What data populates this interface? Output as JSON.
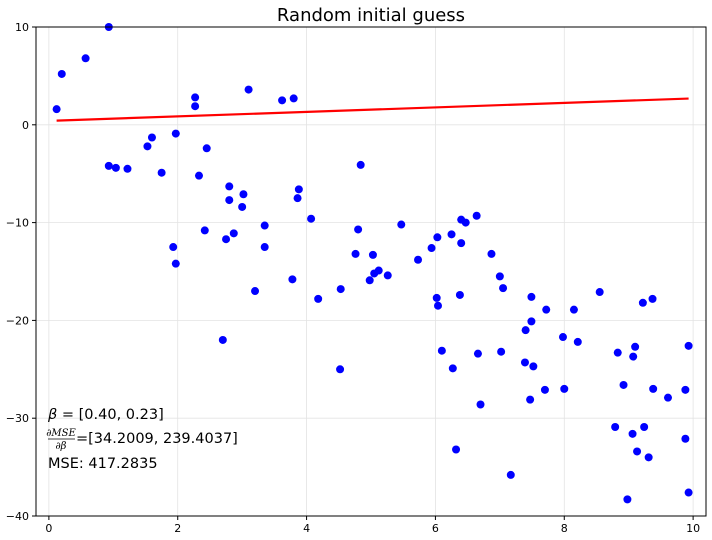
{
  "chart_data": {
    "type": "scatter",
    "title": "Random initial guess",
    "xlabel": "",
    "ylabel": "",
    "xlim": [
      -0.2,
      10.2
    ],
    "ylim": [
      -40,
      10
    ],
    "x_ticks": [
      0,
      2,
      4,
      6,
      8,
      10
    ],
    "y_ticks": [
      -40,
      -30,
      -20,
      -10,
      0,
      10
    ],
    "grid": true,
    "colors": {
      "points": "#0000ff",
      "line": "#ff0000",
      "grid": "#e3e3e3",
      "axes": "#000000"
    },
    "points": [
      [
        0.12,
        1.6
      ],
      [
        0.2,
        5.2
      ],
      [
        0.57,
        6.8
      ],
      [
        0.93,
        10.0
      ],
      [
        0.93,
        -4.2
      ],
      [
        1.04,
        -4.4
      ],
      [
        1.22,
        -4.5
      ],
      [
        1.53,
        -2.2
      ],
      [
        1.6,
        -1.3
      ],
      [
        1.75,
        -4.9
      ],
      [
        1.93,
        -12.5
      ],
      [
        1.97,
        -14.2
      ],
      [
        1.97,
        -0.9
      ],
      [
        2.27,
        1.9
      ],
      [
        2.27,
        2.8
      ],
      [
        2.33,
        -5.2
      ],
      [
        2.42,
        -10.8
      ],
      [
        2.45,
        -2.4
      ],
      [
        2.7,
        -22.0
      ],
      [
        2.75,
        -11.7
      ],
      [
        2.8,
        -6.3
      ],
      [
        2.8,
        -7.7
      ],
      [
        2.87,
        -11.1
      ],
      [
        3.0,
        -8.4
      ],
      [
        3.02,
        -7.1
      ],
      [
        3.1,
        3.6
      ],
      [
        3.2,
        -17.0
      ],
      [
        3.35,
        -12.5
      ],
      [
        3.35,
        -10.3
      ],
      [
        3.62,
        2.5
      ],
      [
        3.78,
        -15.8
      ],
      [
        3.8,
        2.7
      ],
      [
        3.86,
        -7.5
      ],
      [
        3.88,
        -6.6
      ],
      [
        4.07,
        -9.6
      ],
      [
        4.18,
        -17.8
      ],
      [
        4.53,
        -16.8
      ],
      [
        4.52,
        -25.0
      ],
      [
        4.76,
        -13.2
      ],
      [
        4.8,
        -10.7
      ],
      [
        4.84,
        -4.1
      ],
      [
        4.98,
        -15.9
      ],
      [
        5.03,
        -13.3
      ],
      [
        5.05,
        -15.2
      ],
      [
        5.12,
        -14.9
      ],
      [
        5.26,
        -15.4
      ],
      [
        5.47,
        -10.2
      ],
      [
        5.73,
        -13.8
      ],
      [
        5.94,
        -12.6
      ],
      [
        6.03,
        -11.5
      ],
      [
        6.02,
        -17.7
      ],
      [
        6.04,
        -18.5
      ],
      [
        6.1,
        -23.1
      ],
      [
        6.25,
        -11.2
      ],
      [
        6.27,
        -24.9
      ],
      [
        6.32,
        -33.2
      ],
      [
        6.38,
        -17.4
      ],
      [
        6.4,
        -12.1
      ],
      [
        6.4,
        -9.7
      ],
      [
        6.47,
        -10.0
      ],
      [
        6.64,
        -9.3
      ],
      [
        6.66,
        -23.4
      ],
      [
        6.7,
        -28.6
      ],
      [
        6.87,
        -13.2
      ],
      [
        7.0,
        -15.5
      ],
      [
        7.02,
        -23.2
      ],
      [
        7.05,
        -16.7
      ],
      [
        7.17,
        -35.8
      ],
      [
        7.39,
        -24.3
      ],
      [
        7.4,
        -21.0
      ],
      [
        7.47,
        -28.1
      ],
      [
        7.49,
        -17.6
      ],
      [
        7.49,
        -20.1
      ],
      [
        7.52,
        -24.7
      ],
      [
        7.7,
        -27.1
      ],
      [
        7.72,
        -18.9
      ],
      [
        7.98,
        -21.7
      ],
      [
        8.0,
        -27.0
      ],
      [
        8.15,
        -18.9
      ],
      [
        8.21,
        -22.2
      ],
      [
        8.55,
        -17.1
      ],
      [
        8.79,
        -30.9
      ],
      [
        8.83,
        -23.3
      ],
      [
        8.92,
        -26.6
      ],
      [
        8.98,
        -38.3
      ],
      [
        9.06,
        -31.6
      ],
      [
        9.07,
        -23.7
      ],
      [
        9.1,
        -22.7
      ],
      [
        9.13,
        -33.4
      ],
      [
        9.22,
        -18.2
      ],
      [
        9.24,
        -30.9
      ],
      [
        9.31,
        -34.0
      ],
      [
        9.37,
        -17.8
      ],
      [
        9.38,
        -27.0
      ],
      [
        9.61,
        -27.9
      ],
      [
        9.88,
        -27.1
      ],
      [
        9.88,
        -32.1
      ],
      [
        9.93,
        -37.6
      ],
      [
        9.93,
        -22.6
      ]
    ],
    "fit_line": {
      "beta": [
        0.4,
        0.23
      ],
      "x_range": [
        0.12,
        9.93
      ]
    },
    "annotations": {
      "beta_symbol": "β",
      "beta_text": " = [0.40, 0.23]",
      "grad_numerator": "∂MSE",
      "grad_denominator": "∂β",
      "grad_text": "=[34.2009, 239.4037]",
      "mse_text": "MSE: 417.2835"
    }
  }
}
